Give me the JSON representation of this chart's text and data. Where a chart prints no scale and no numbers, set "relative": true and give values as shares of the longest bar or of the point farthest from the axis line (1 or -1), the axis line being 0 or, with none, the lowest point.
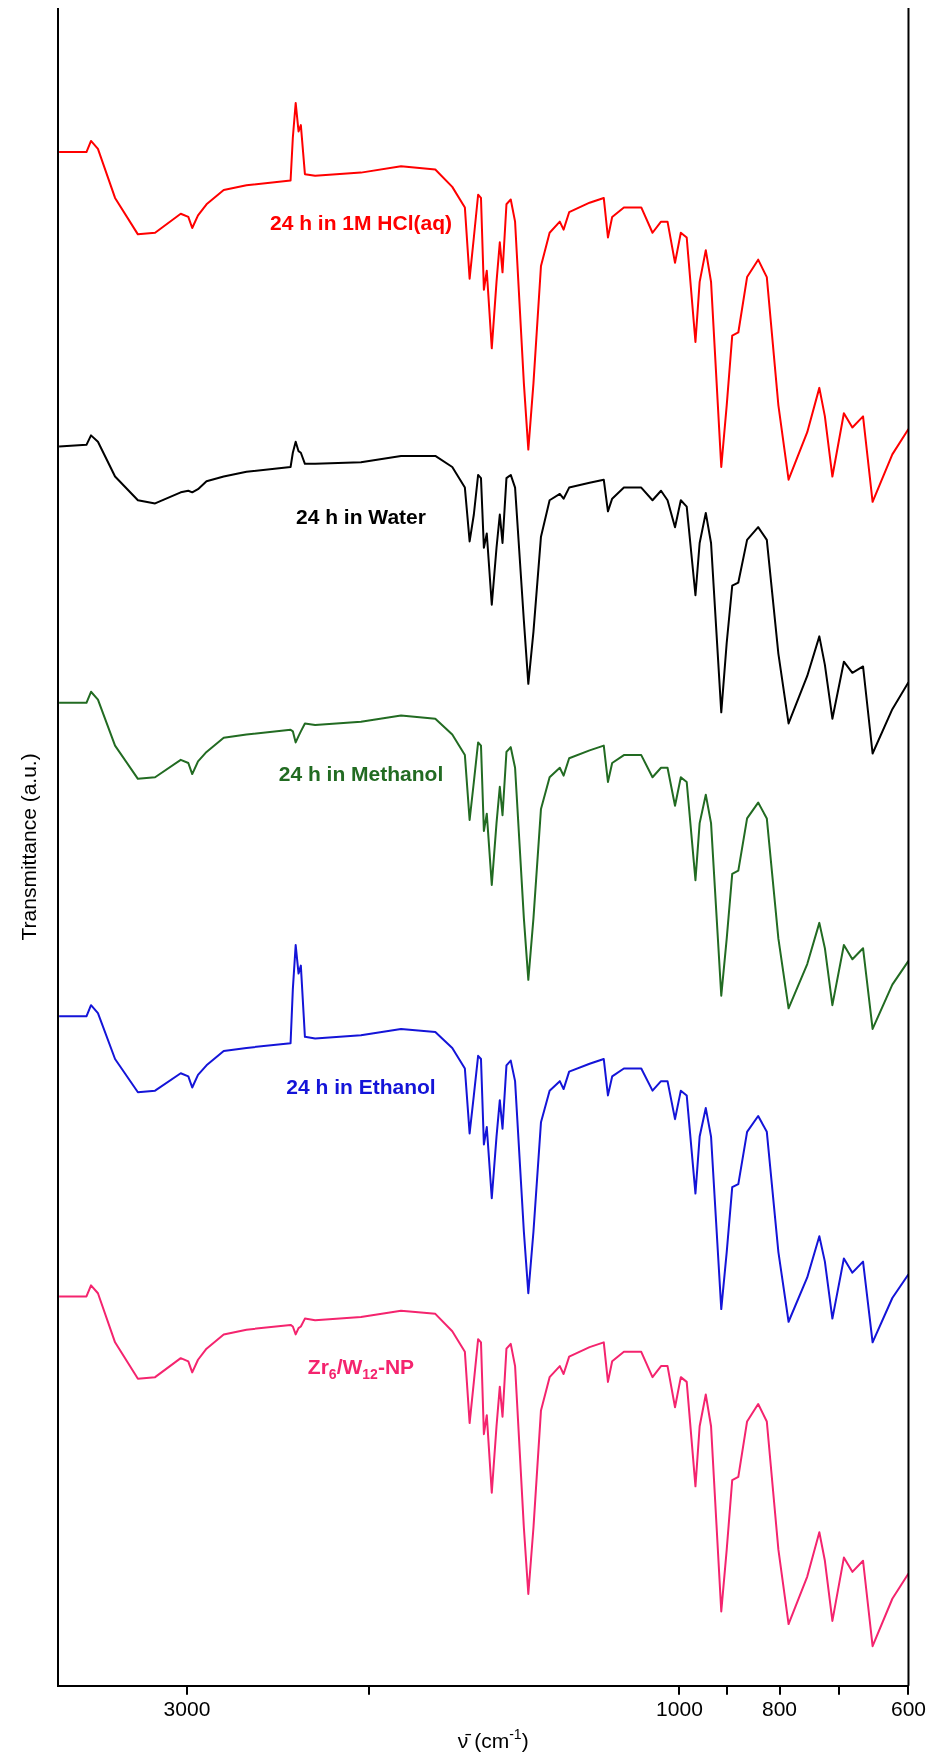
{
  "chart_data": {
    "type": "line",
    "xlabel": "ν̄ (cm$^{-1}$)",
    "ylabel": "Transmittance (a.u.)",
    "relative": true,
    "log": "x",
    "marker": "none",
    "xlim": [
      4000,
      600
    ],
    "xticks": [
      3000,
      {
        "value": 2000,
        "label": null
      },
      1000,
      {
        "value": 900,
        "label": null
      },
      800,
      {
        "value": 700,
        "label": null
      },
      600
    ],
    "x": [
      3990,
      3754,
      3716,
      3659,
      3522,
      3347,
      3221,
      3042,
      2991,
      2965,
      2927,
      2872,
      2764,
      2627,
      2381,
      2369,
      2354,
      2339,
      2327,
      2306,
      2254,
      2035,
      1861,
      1724,
      1660,
      1614,
      1597,
      1582,
      1567,
      1557,
      1547,
      1537,
      1520,
      1504,
      1493,
      1484,
      1471,
      1457,
      1443,
      1415,
      1401,
      1385,
      1362,
      1336,
      1306,
      1295,
      1279,
      1222,
      1184,
      1173,
      1162,
      1132,
      1089,
      1062,
      1042,
      1027,
      1010,
      997,
      984,
      965,
      956,
      943,
      932,
      911,
      900,
      889,
      877,
      860,
      839,
      823,
      802,
      784,
      752,
      732,
      723,
      711,
      693,
      680,
      664,
      650,
      622,
      600
    ],
    "series": [
      {
        "name": "24 h in 1M HCl(aq)",
        "color": "#ff0000",
        "values": [
          0.969,
          0.969,
          0.976,
          0.971,
          0.94,
          0.917,
          0.918,
          0.93,
          0.928,
          0.921,
          0.929,
          0.936,
          0.945,
          0.948,
          0.951,
          0.978,
          1.0,
          0.982,
          0.986,
          0.955,
          0.954,
          0.956,
          0.96,
          0.958,
          0.947,
          0.934,
          0.889,
          0.915,
          0.942,
          0.94,
          0.882,
          0.894,
          0.845,
          0.887,
          0.912,
          0.893,
          0.936,
          0.939,
          0.925,
          0.823,
          0.781,
          0.823,
          0.897,
          0.918,
          0.925,
          0.92,
          0.931,
          0.937,
          0.94,
          0.915,
          0.928,
          0.934,
          0.934,
          0.918,
          0.925,
          0.925,
          0.899,
          0.918,
          0.915,
          0.849,
          0.887,
          0.907,
          0.887,
          0.77,
          0.809,
          0.853,
          0.855,
          0.89,
          0.901,
          0.89,
          0.809,
          0.762,
          0.792,
          0.82,
          0.802,
          0.764,
          0.804,
          0.795,
          0.802,
          0.748,
          0.778,
          0.794
        ]
      },
      {
        "name": "24 h in Water",
        "color": "#000000",
        "values": [
          0.783,
          0.784,
          0.79,
          0.786,
          0.764,
          0.749,
          0.747,
          0.754,
          0.755,
          0.754,
          0.756,
          0.761,
          0.764,
          0.767,
          0.77,
          0.779,
          0.786,
          0.78,
          0.779,
          0.772,
          0.772,
          0.773,
          0.777,
          0.777,
          0.77,
          0.757,
          0.723,
          0.74,
          0.765,
          0.763,
          0.719,
          0.728,
          0.683,
          0.719,
          0.74,
          0.722,
          0.763,
          0.765,
          0.757,
          0.673,
          0.633,
          0.666,
          0.726,
          0.749,
          0.753,
          0.75,
          0.757,
          0.76,
          0.762,
          0.742,
          0.75,
          0.757,
          0.757,
          0.749,
          0.755,
          0.749,
          0.732,
          0.749,
          0.745,
          0.689,
          0.722,
          0.741,
          0.722,
          0.615,
          0.659,
          0.695,
          0.697,
          0.724,
          0.732,
          0.724,
          0.652,
          0.608,
          0.638,
          0.663,
          0.645,
          0.611,
          0.647,
          0.64,
          0.644,
          0.589,
          0.617,
          0.634
        ]
      },
      {
        "name": "24 h in Methanol",
        "color": "#226b22",
        "values": [
          0.621,
          0.621,
          0.628,
          0.623,
          0.594,
          0.573,
          0.574,
          0.585,
          0.583,
          0.576,
          0.584,
          0.59,
          0.599,
          0.601,
          0.604,
          0.603,
          0.596,
          0.6,
          0.603,
          0.608,
          0.607,
          0.609,
          0.613,
          0.611,
          0.601,
          0.588,
          0.547,
          0.571,
          0.596,
          0.594,
          0.54,
          0.551,
          0.506,
          0.545,
          0.568,
          0.55,
          0.59,
          0.593,
          0.58,
          0.485,
          0.446,
          0.485,
          0.554,
          0.574,
          0.58,
          0.575,
          0.586,
          0.591,
          0.594,
          0.571,
          0.583,
          0.588,
          0.588,
          0.574,
          0.58,
          0.58,
          0.556,
          0.574,
          0.571,
          0.509,
          0.545,
          0.563,
          0.545,
          0.436,
          0.472,
          0.513,
          0.515,
          0.548,
          0.558,
          0.548,
          0.472,
          0.428,
          0.456,
          0.482,
          0.466,
          0.43,
          0.468,
          0.459,
          0.466,
          0.415,
          0.443,
          0.458
        ]
      },
      {
        "name": "24 h in Ethanol",
        "color": "#1414d8",
        "values": [
          0.423,
          0.423,
          0.43,
          0.425,
          0.396,
          0.375,
          0.376,
          0.387,
          0.385,
          0.378,
          0.386,
          0.392,
          0.401,
          0.403,
          0.406,
          0.44,
          0.468,
          0.45,
          0.455,
          0.41,
          0.409,
          0.411,
          0.415,
          0.413,
          0.403,
          0.39,
          0.349,
          0.373,
          0.398,
          0.396,
          0.342,
          0.353,
          0.308,
          0.347,
          0.37,
          0.352,
          0.392,
          0.395,
          0.382,
          0.287,
          0.248,
          0.287,
          0.356,
          0.376,
          0.382,
          0.377,
          0.388,
          0.393,
          0.396,
          0.373,
          0.385,
          0.39,
          0.39,
          0.376,
          0.382,
          0.382,
          0.358,
          0.376,
          0.373,
          0.311,
          0.347,
          0.365,
          0.347,
          0.238,
          0.274,
          0.315,
          0.317,
          0.35,
          0.36,
          0.35,
          0.274,
          0.23,
          0.258,
          0.284,
          0.268,
          0.232,
          0.27,
          0.261,
          0.268,
          0.217,
          0.245,
          0.26
        ]
      },
      {
        "name": "Zr$_{6}$/W$_{12}$-NP",
        "color": "#f4246e",
        "values": [
          0.246,
          0.246,
          0.253,
          0.248,
          0.217,
          0.194,
          0.195,
          0.207,
          0.205,
          0.198,
          0.206,
          0.213,
          0.222,
          0.225,
          0.228,
          0.227,
          0.222,
          0.226,
          0.227,
          0.232,
          0.231,
          0.233,
          0.237,
          0.235,
          0.224,
          0.211,
          0.166,
          0.192,
          0.219,
          0.217,
          0.159,
          0.171,
          0.122,
          0.164,
          0.189,
          0.17,
          0.213,
          0.216,
          0.202,
          0.1,
          0.058,
          0.1,
          0.174,
          0.195,
          0.202,
          0.197,
          0.208,
          0.214,
          0.217,
          0.192,
          0.205,
          0.211,
          0.211,
          0.195,
          0.202,
          0.202,
          0.176,
          0.195,
          0.192,
          0.126,
          0.164,
          0.184,
          0.164,
          0.047,
          0.086,
          0.13,
          0.132,
          0.167,
          0.178,
          0.167,
          0.086,
          0.039,
          0.069,
          0.097,
          0.079,
          0.041,
          0.081,
          0.072,
          0.079,
          0.025,
          0.055,
          0.071
        ]
      }
    ]
  }
}
